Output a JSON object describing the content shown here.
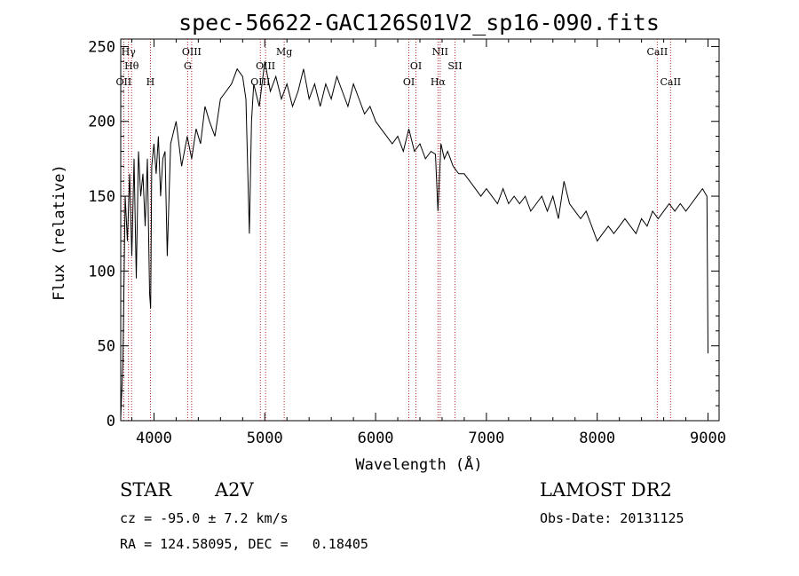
{
  "chart_data": {
    "type": "line",
    "title": "spec-56622-GAC126S01V2_sp16-090.fits",
    "xlabel": "Wavelength (Å)",
    "ylabel": "Flux (relative)",
    "xlim": [
      3700,
      9100
    ],
    "ylim": [
      0,
      255
    ],
    "xticks": [
      4000,
      5000,
      6000,
      7000,
      8000,
      9000
    ],
    "yticks": [
      0,
      50,
      100,
      150,
      200,
      250
    ],
    "grid": false,
    "series": [
      {
        "x": [
          3700,
          3720,
          3740,
          3760,
          3780,
          3800,
          3820,
          3840,
          3860,
          3880,
          3900,
          3920,
          3940,
          3960,
          3970,
          3980,
          4000,
          4020,
          4040,
          4060,
          4080,
          4100,
          4120,
          4150,
          4200,
          4250,
          4300,
          4340,
          4380,
          4420,
          4460,
          4500,
          4550,
          4600,
          4650,
          4700,
          4750,
          4800,
          4830,
          4861,
          4880,
          4900,
          4950,
          5000,
          5050,
          5100,
          5150,
          5200,
          5250,
          5300,
          5350,
          5400,
          5450,
          5500,
          5550,
          5600,
          5650,
          5700,
          5750,
          5800,
          5850,
          5900,
          5950,
          6000,
          6050,
          6100,
          6150,
          6200,
          6250,
          6300,
          6350,
          6400,
          6450,
          6500,
          6540,
          6563,
          6590,
          6620,
          6650,
          6700,
          6750,
          6800,
          6850,
          6900,
          6950,
          7000,
          7050,
          7100,
          7150,
          7200,
          7250,
          7300,
          7350,
          7400,
          7450,
          7500,
          7550,
          7600,
          7650,
          7700,
          7750,
          7800,
          7850,
          7900,
          7950,
          8000,
          8050,
          8100,
          8150,
          8200,
          8250,
          8300,
          8350,
          8400,
          8450,
          8500,
          8550,
          8600,
          8650,
          8700,
          8750,
          8800,
          8850,
          8900,
          8950,
          8990,
          9000
        ],
        "y": [
          2,
          40,
          150,
          120,
          165,
          110,
          175,
          95,
          180,
          150,
          165,
          130,
          175,
          85,
          75,
          170,
          185,
          165,
          190,
          150,
          175,
          180,
          110,
          185,
          200,
          170,
          190,
          175,
          195,
          185,
          210,
          200,
          190,
          215,
          220,
          225,
          235,
          230,
          215,
          125,
          200,
          225,
          210,
          240,
          220,
          230,
          215,
          225,
          210,
          220,
          235,
          215,
          225,
          210,
          225,
          215,
          230,
          220,
          210,
          225,
          215,
          205,
          210,
          200,
          195,
          190,
          185,
          190,
          180,
          195,
          180,
          185,
          175,
          180,
          178,
          140,
          185,
          175,
          180,
          170,
          165,
          165,
          160,
          155,
          150,
          155,
          150,
          145,
          155,
          145,
          150,
          145,
          150,
          140,
          145,
          150,
          140,
          150,
          135,
          160,
          145,
          140,
          135,
          140,
          130,
          120,
          125,
          130,
          125,
          130,
          135,
          130,
          125,
          135,
          130,
          140,
          135,
          140,
          145,
          140,
          145,
          140,
          145,
          150,
          155,
          150,
          45
        ]
      }
    ],
    "line_markers": [
      {
        "label": "OII",
        "x": 3727,
        "row": 4
      },
      {
        "label": "Hγ",
        "x": 3770,
        "row": 1
      },
      {
        "label": "Hθ",
        "x": 3798,
        "row": 2
      },
      {
        "label": "H",
        "x": 3968,
        "row": 4
      },
      {
        "label": "OIII",
        "x": 4340,
        "row": 1
      },
      {
        "label": "G",
        "x": 4304,
        "row": 2
      },
      {
        "label": "OIII",
        "x": 5007,
        "row": 2
      },
      {
        "label": "OIII",
        "x": 4960,
        "row": 4
      },
      {
        "label": "Mg",
        "x": 5175,
        "row": 1
      },
      {
        "label": "OI",
        "x": 6364,
        "row": 2
      },
      {
        "label": "OI",
        "x": 6300,
        "row": 4
      },
      {
        "label": "NII",
        "x": 6583,
        "row": 1
      },
      {
        "label": "Hα",
        "x": 6563,
        "row": 4
      },
      {
        "label": "SII",
        "x": 6716,
        "row": 2
      },
      {
        "label": "CaII",
        "x": 8542,
        "row": 1
      },
      {
        "label": "CaII",
        "x": 8662,
        "row": 4
      }
    ]
  },
  "footer": {
    "class_label": "STAR",
    "subclass": "A2V",
    "survey": "LAMOST DR2",
    "cz_line": "cz = -95.0 ± 7.2 km/s",
    "obs_date": "Obs-Date: 20131125",
    "radec_line": "RA = 124.58095, DEC =   0.18405"
  }
}
